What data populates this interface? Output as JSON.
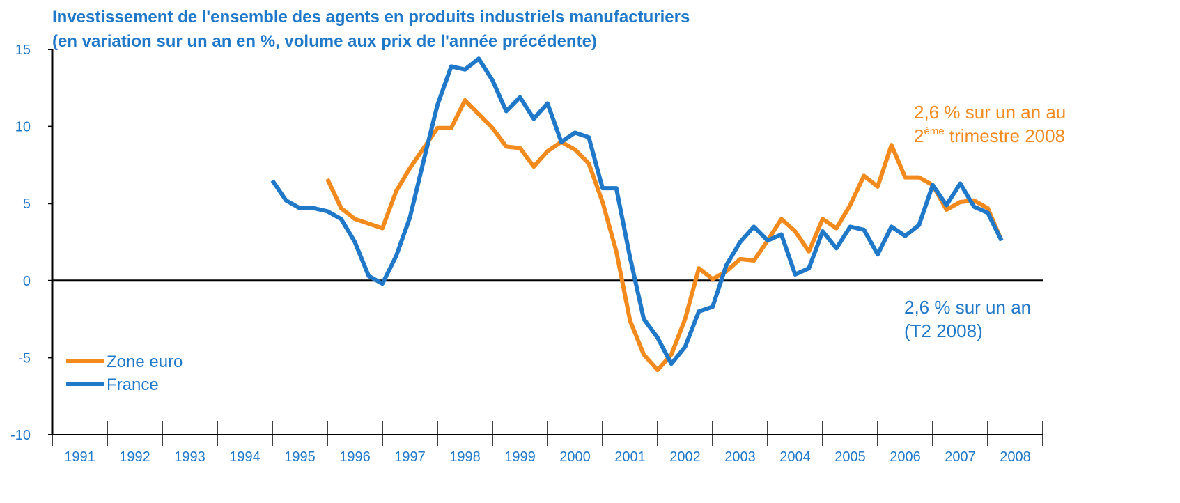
{
  "chart_data": {
    "type": "line",
    "title": [
      "Investissement de l'ensemble des agents en produits industriels manufacturiers",
      "(en variation sur un an en %, volume aux prix de l'année précédente)"
    ],
    "categories": [
      "1991",
      "1992",
      "1993",
      "1994",
      "1995",
      "1996",
      "1997",
      "1998",
      "1999",
      "2000",
      "2001",
      "2002",
      "2003",
      "2004",
      "2005",
      "2006",
      "2007",
      "2008"
    ],
    "xlim": [
      1991,
      2009
    ],
    "x": [
      1995,
      1995.25,
      1995.5,
      1995.75,
      1996,
      1996.25,
      1996.5,
      1996.75,
      1997,
      1997.25,
      1997.5,
      1997.75,
      1998,
      1998.25,
      1998.5,
      1998.75,
      1999,
      1999.25,
      1999.5,
      1999.75,
      2000,
      2000.25,
      2000.5,
      2000.75,
      2001,
      2001.25,
      2001.5,
      2001.75,
      2002,
      2002.25,
      2002.5,
      2002.75,
      2003,
      2003.25,
      2003.5,
      2003.75,
      2004,
      2004.25,
      2004.5,
      2004.75,
      2005,
      2005.25,
      2005.5,
      2005.75,
      2006,
      2006.25,
      2006.5,
      2006.75,
      2007,
      2007.25,
      2007.5,
      2007.75,
      2008,
      2008.25
    ],
    "ylim": [
      -10,
      15
    ],
    "yticks": [
      -10,
      -5,
      0,
      5,
      10,
      15
    ],
    "legend": "lower left",
    "series": [
      {
        "name": "Zone euro",
        "color": "#f28a1e",
        "values": [
          null,
          null,
          null,
          null,
          6.6,
          4.7,
          4.0,
          3.7,
          3.4,
          5.8,
          7.3,
          8.6,
          9.9,
          9.9,
          11.7,
          10.8,
          9.9,
          8.7,
          8.6,
          7.4,
          8.4,
          9.0,
          8.5,
          7.6,
          5.1,
          1.9,
          -2.6,
          -4.8,
          -5.8,
          -4.8,
          -2.5,
          0.8,
          0.1,
          0.6,
          1.4,
          1.3,
          2.6,
          4.0,
          3.2,
          1.9,
          4.0,
          3.4,
          4.9,
          6.8,
          6.1,
          8.8,
          6.7,
          6.7,
          6.2,
          4.6,
          5.1,
          5.2,
          4.7,
          2.6
        ]
      },
      {
        "name": "France",
        "color": "#1f78c8",
        "values": [
          6.5,
          5.2,
          4.7,
          4.7,
          4.5,
          4.0,
          2.5,
          0.3,
          -0.2,
          1.6,
          4.1,
          7.8,
          11.4,
          13.9,
          13.7,
          14.4,
          13.0,
          11.0,
          11.9,
          10.5,
          11.5,
          9.0,
          9.6,
          9.3,
          6.0,
          6.0,
          1.5,
          -2.5,
          -3.7,
          -5.4,
          -4.3,
          -2.0,
          -1.7,
          1.0,
          2.5,
          3.5,
          2.6,
          3.0,
          0.4,
          0.8,
          3.2,
          2.1,
          3.5,
          3.3,
          1.7,
          3.5,
          2.9,
          3.6,
          6.2,
          4.9,
          6.3,
          4.8,
          4.4,
          2.6
        ]
      }
    ],
    "annotations": [
      {
        "lines": [
          "2,6 % sur un an au",
          [
            "2",
            "ème",
            " trimestre 2008"
          ]
        ],
        "color": "#f28a1e"
      },
      {
        "lines": [
          "2,6 % sur un an",
          "(T2 2008)"
        ],
        "color": "#1f78c8"
      }
    ]
  }
}
